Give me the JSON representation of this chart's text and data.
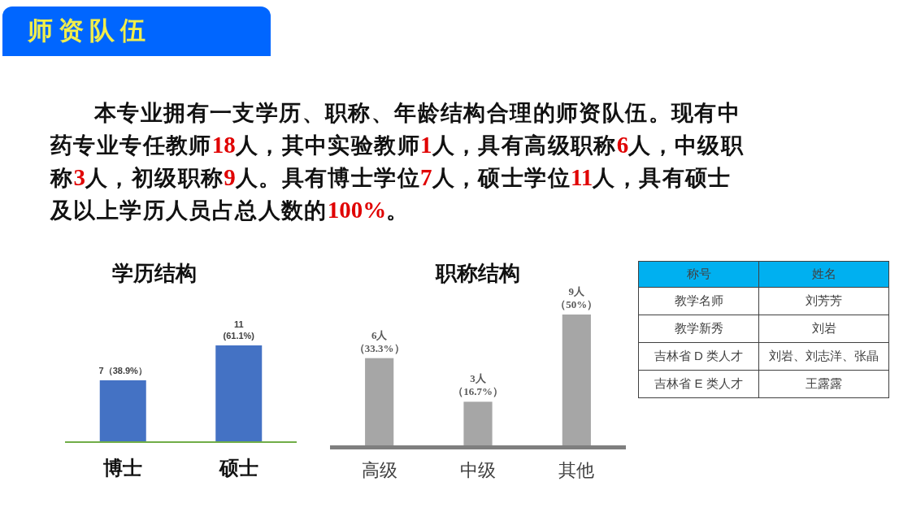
{
  "chart_data": [
    {
      "type": "other",
      "title": "师资队伍",
      "annotations": [
        "本专业拥有一支学历、职称、年龄结构合理的师资队伍。现有中药专业专任教师18人，其中实验教师1人，具有高级职称6人，中级职称3人，初级职称9人。具有博士学位7人，硕士学位11人，具有硕士及以上学历人员占总人数的100%。"
      ]
    },
    {
      "type": "bar",
      "title": "学历结构",
      "categories": [
        "博士",
        "硕士"
      ],
      "values": [
        7,
        11
      ],
      "value_labels": [
        "7（38.9%）",
        "11\n(61.1%)"
      ],
      "color": "#4472c4"
    },
    {
      "type": "bar",
      "title": "职称结构",
      "categories": [
        "高级",
        "中级",
        "其他"
      ],
      "values": [
        6,
        3,
        9
      ],
      "value_labels": [
        "6人（33.3%）",
        "3人（16.7%）",
        "9人（50%）"
      ],
      "color": "#a6a6a6"
    },
    {
      "type": "other",
      "categories": [
        "称号",
        "姓名"
      ],
      "y_categories": [
        "教学名师",
        "教学新秀",
        "吉林省 D 类人才",
        "吉林省 E 类人才"
      ],
      "y2_categories": [
        "刘芳芳",
        "刘岩",
        "刘岩、刘志洋、张晶",
        "王露露"
      ]
    }
  ]
}
